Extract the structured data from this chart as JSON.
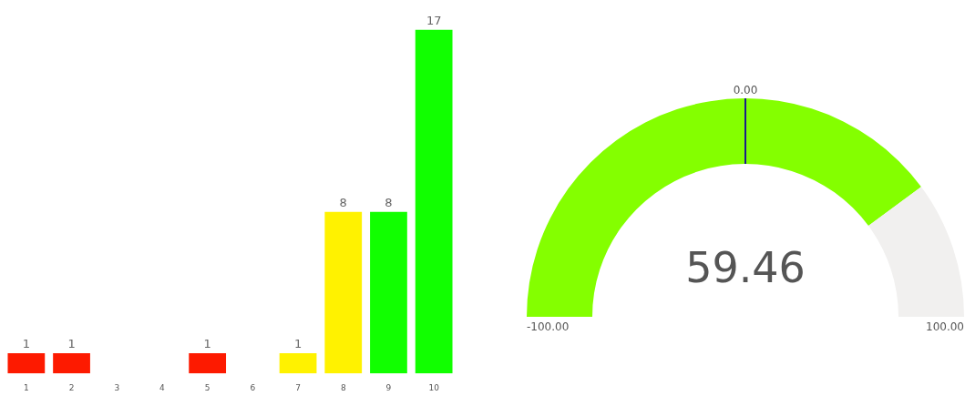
{
  "chart_data": [
    {
      "type": "bar",
      "categories": [
        "1",
        "2",
        "3",
        "4",
        "5",
        "6",
        "7",
        "8",
        "9",
        "10"
      ],
      "values": [
        1,
        1,
        null,
        null,
        1,
        null,
        1,
        8,
        8,
        17
      ],
      "colors": [
        "#fd1a00",
        "#fd1a00",
        "#fd1a00",
        "#fd1a00",
        "#fd1a00",
        "#fff200",
        "#fff200",
        "#fff200",
        "#11ff00",
        "#11ff00"
      ],
      "value_labels": [
        "1",
        "1",
        null,
        null,
        "1",
        null,
        "1",
        "8",
        "8",
        "17"
      ],
      "legend": false
    },
    {
      "type": "donut",
      "categories": [
        null,
        null
      ],
      "values": [
        79.73,
        20.27
      ],
      "colors": [
        "#84ff00",
        "#f1f0ef"
      ],
      "annotations": [
        "0.00",
        "-100.00",
        "100.00",
        "59.46"
      ]
    }
  ]
}
